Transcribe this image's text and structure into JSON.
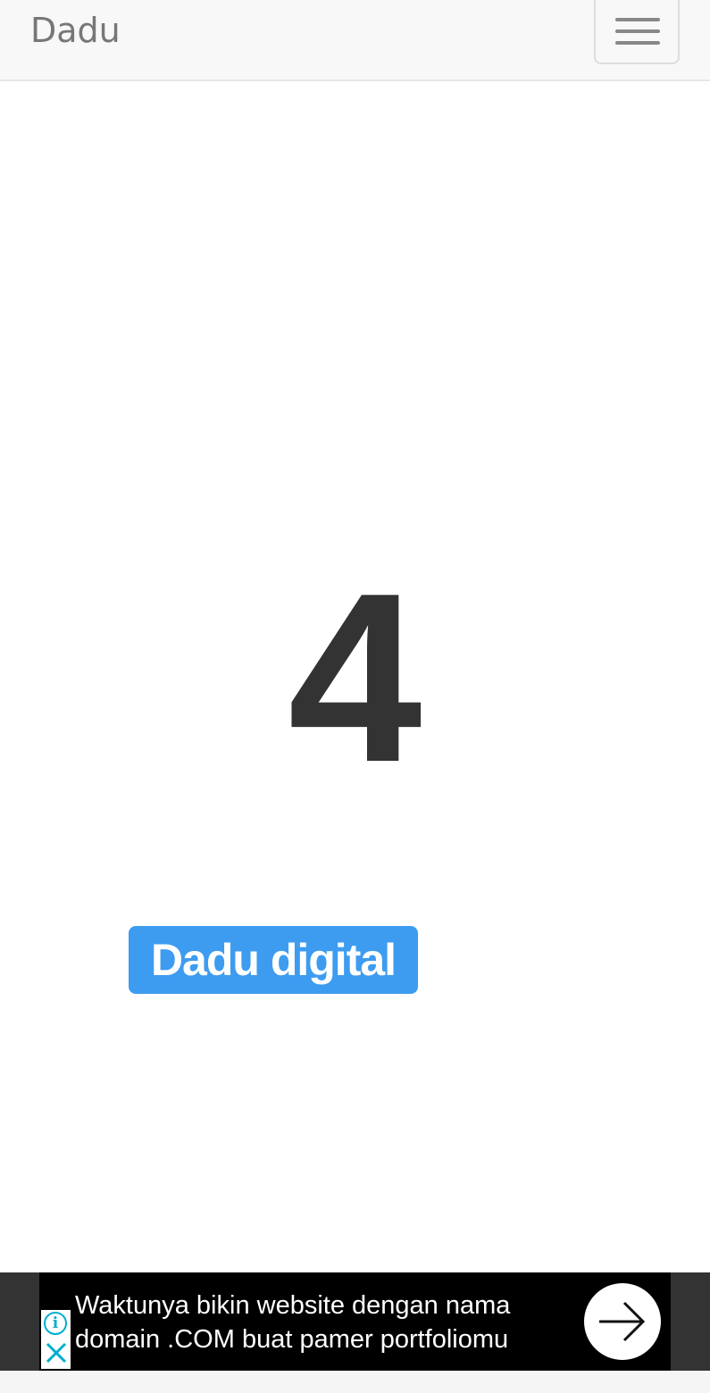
{
  "navbar": {
    "brand": "Dadu",
    "menu_icon": "hamburger-menu-icon"
  },
  "dice": {
    "result": "4"
  },
  "roll_button": {
    "label": "Dadu digital",
    "color": "#3d9cf0"
  },
  "ad": {
    "line1": "Waktunya bikin website dengan nama",
    "line2": "domain .COM buat pamer portfoliomu",
    "info_icon": "info-icon",
    "close_icon": "close-icon",
    "arrow_icon": "arrow-right-icon",
    "accent": "#00aecd"
  }
}
